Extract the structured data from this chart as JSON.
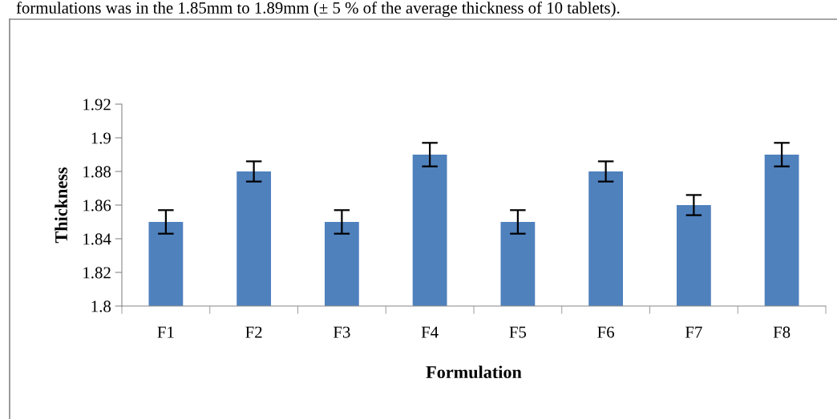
{
  "chart_data": {
    "type": "bar",
    "xlabel": "Formulation",
    "ylabel": "Thickness",
    "categories": [
      "F1",
      "F2",
      "F3",
      "F4",
      "F5",
      "F6",
      "F7",
      "F8"
    ],
    "values": [
      1.85,
      1.88,
      1.85,
      1.89,
      1.85,
      1.88,
      1.86,
      1.89
    ],
    "errors": [
      0.007,
      0.006,
      0.007,
      0.007,
      0.007,
      0.006,
      0.006,
      0.007
    ],
    "color": "#4f81bd",
    "ylim": [
      1.8,
      1.92
    ],
    "yticks": [
      1.8,
      1.82,
      1.84,
      1.86,
      1.88,
      1.9,
      1.92
    ],
    "grid": false,
    "annotations": [
      "formulations was in the 1.85mm to 1.89mm (± 5 % of the average thickness of 10 tablets)."
    ]
  }
}
